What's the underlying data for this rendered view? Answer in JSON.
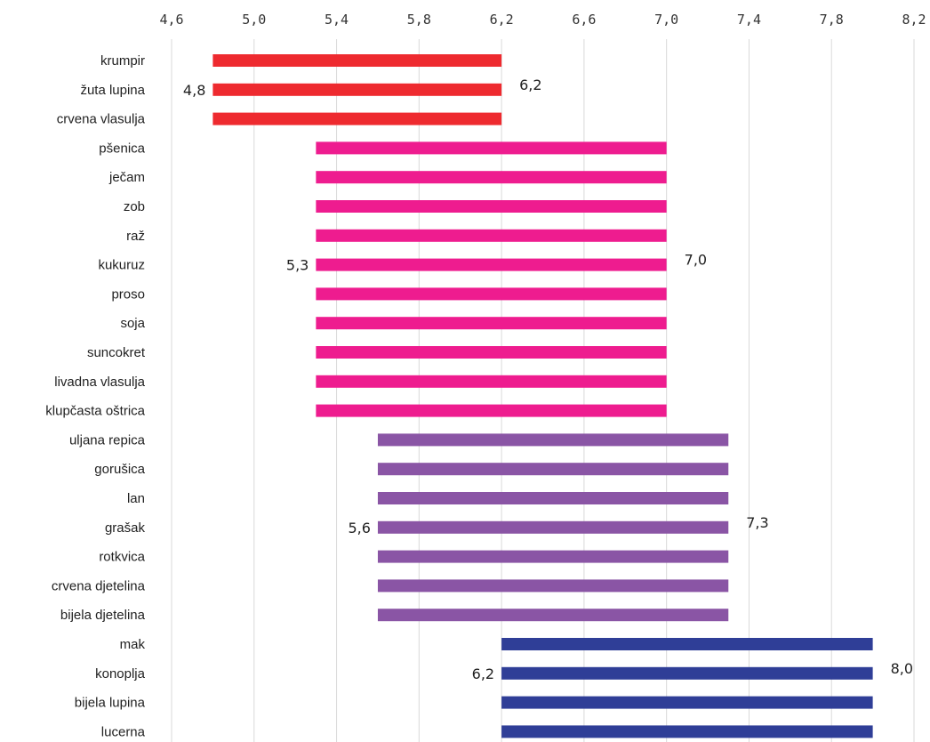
{
  "chart_data": {
    "type": "bar",
    "orientation": "horizontal",
    "subtype": "floating-range",
    "title": "",
    "xlabel": "",
    "ylabel": "",
    "xlim": [
      4.6,
      8.2
    ],
    "x_ticks": [
      4.6,
      5.0,
      5.4,
      5.8,
      6.2,
      6.6,
      7.0,
      7.4,
      7.8,
      8.2
    ],
    "x_tick_labels": [
      "4,6",
      "5,0",
      "5,4",
      "5,8",
      "6,2",
      "6,6",
      "7,0",
      "7,4",
      "7,8",
      "8,2"
    ],
    "x_axis_position": "top",
    "grid": true,
    "legend": "none",
    "groups": [
      {
        "color": "#ee2a2f",
        "min": 4.8,
        "max": 6.2,
        "min_label": "4,8",
        "max_label": "6,2",
        "categories": [
          "krumpir",
          "žuta lupina",
          "crvena vlasulja"
        ]
      },
      {
        "color": "#ee1c8f",
        "min": 5.3,
        "max": 7.0,
        "min_label": "5,3",
        "max_label": "7,0",
        "categories": [
          "pšenica",
          "ječam",
          "zob",
          "raž",
          "kukuruz",
          "proso",
          "soja",
          "suncokret",
          "livadna vlasulja",
          "klupčasta oštrica"
        ]
      },
      {
        "color": "#8a55a5",
        "min": 5.6,
        "max": 7.3,
        "min_label": "5,6",
        "max_label": "7,3",
        "categories": [
          "uljana repica",
          "gorušica",
          "lan",
          "grašak",
          "rotkvica",
          "crvena djetelina",
          "bijela djetelina"
        ]
      },
      {
        "color": "#2f3e97",
        "min": 6.2,
        "max": 8.0,
        "min_label": "6,2",
        "max_label": "8,0",
        "categories": [
          "mak",
          "konoplja",
          "bijela lupina",
          "lucerna"
        ]
      }
    ]
  }
}
